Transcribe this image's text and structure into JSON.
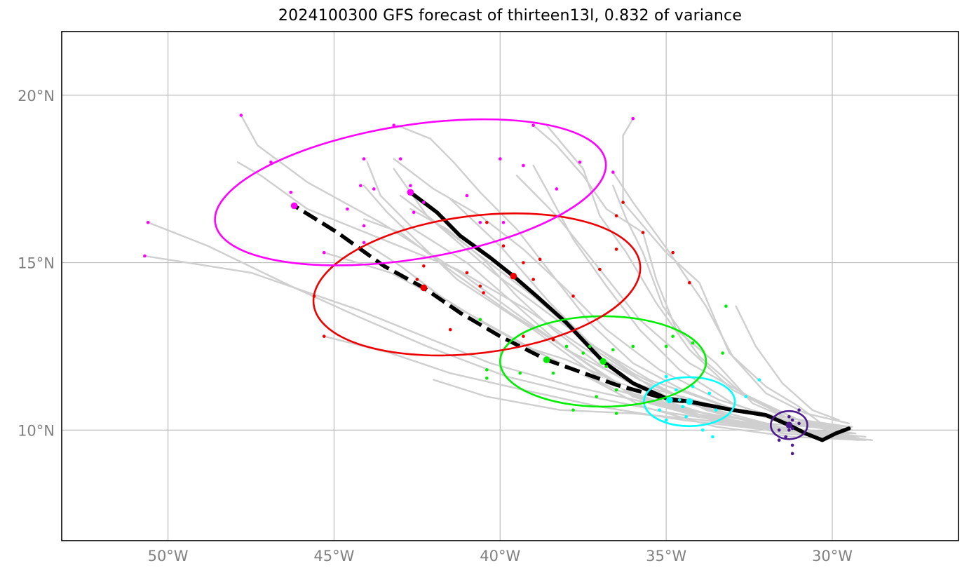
{
  "title": "2024100300 GFS forecast of thirteen13l, 0.832 of variance",
  "map": {
    "lon_range": [
      -53.2,
      -26.2
    ],
    "lat_range": [
      6.7,
      21.9
    ],
    "gridlines": true,
    "lon_ticks": [
      {
        "value": -50,
        "label": "50°W"
      },
      {
        "value": -45,
        "label": "45°W"
      },
      {
        "value": -40,
        "label": "40°W"
      },
      {
        "value": -35,
        "label": "35°W"
      },
      {
        "value": -30,
        "label": "30°W"
      }
    ],
    "lat_ticks": [
      {
        "value": 10,
        "label": "10°N"
      },
      {
        "value": 15,
        "label": "15°N"
      },
      {
        "value": 20,
        "label": "20°N"
      }
    ]
  },
  "colors": {
    "ensemble": "#cfcfcf",
    "mean_track": "#000000",
    "t0": "#4b1a8c",
    "t1": "#00ffff",
    "t2": "#00ee00",
    "t3": "#ee0000",
    "t4": "#ff00ff"
  },
  "mean_track": [
    [
      -29.5,
      10.05
    ],
    [
      -29.9,
      9.9
    ],
    [
      -30.3,
      9.7
    ],
    [
      -30.8,
      9.9
    ],
    [
      -31.3,
      10.15
    ],
    [
      -32.0,
      10.45
    ],
    [
      -33.0,
      10.6
    ],
    [
      -34.3,
      10.85
    ],
    [
      -35.0,
      10.95
    ],
    [
      -36.0,
      11.4
    ],
    [
      -36.9,
      12.05
    ],
    [
      -38.0,
      13.2
    ],
    [
      -38.9,
      14.0
    ],
    [
      -39.6,
      14.6
    ],
    [
      -40.3,
      15.15
    ],
    [
      -41.2,
      15.8
    ],
    [
      -41.9,
      16.5
    ],
    [
      -42.7,
      17.1
    ]
  ],
  "alt_track": [
    [
      -31.3,
      10.15
    ],
    [
      -32.0,
      10.45
    ],
    [
      -33.0,
      10.6
    ],
    [
      -34.3,
      10.85
    ],
    [
      -34.9,
      10.9
    ],
    [
      -35.6,
      11.1
    ],
    [
      -36.5,
      11.35
    ],
    [
      -38.6,
      12.1
    ],
    [
      -40.0,
      12.8
    ],
    [
      -41.2,
      13.5
    ],
    [
      -42.3,
      14.25
    ],
    [
      -43.5,
      14.9
    ],
    [
      -44.9,
      15.9
    ],
    [
      -46.2,
      16.7
    ]
  ],
  "mean_markers": [
    {
      "lon": -31.3,
      "lat": 10.15,
      "color_key": "t0"
    },
    {
      "lon": -34.3,
      "lat": 10.85,
      "color_key": "t1"
    },
    {
      "lon": -36.9,
      "lat": 12.05,
      "color_key": "t2"
    },
    {
      "lon": -39.6,
      "lat": 14.6,
      "color_key": "t3"
    },
    {
      "lon": -42.7,
      "lat": 17.1,
      "color_key": "t4"
    }
  ],
  "alt_markers": [
    {
      "lon": -34.9,
      "lat": 10.9,
      "color_key": "t1"
    },
    {
      "lon": -38.6,
      "lat": 12.1,
      "color_key": "t2"
    },
    {
      "lon": -42.3,
      "lat": 14.25,
      "color_key": "t3"
    },
    {
      "lon": -46.2,
      "lat": 16.7,
      "color_key": "t4"
    }
  ],
  "ellipses": [
    {
      "cx": -31.3,
      "cy": 10.15,
      "rx": 0.55,
      "ry": 0.42,
      "rot": 0,
      "color_key": "t0"
    },
    {
      "cx": -34.3,
      "cy": 10.85,
      "rx": 1.37,
      "ry": 0.73,
      "rot": 0,
      "color_key": "t1"
    },
    {
      "cx": -36.9,
      "cy": 12.05,
      "rx": 3.1,
      "ry": 1.35,
      "rot": 0,
      "color_key": "t2"
    },
    {
      "cx": -40.7,
      "cy": 14.35,
      "rx": 4.95,
      "ry": 2.05,
      "rot": -7,
      "color_key": "t3"
    },
    {
      "cx": -42.7,
      "cy": 17.1,
      "rx": 5.95,
      "ry": 2.0,
      "rot": -9,
      "color_key": "t4"
    }
  ],
  "ensemble_tracks": [
    [
      [
        -29.4,
        10.1
      ],
      [
        -31.3,
        10.2
      ],
      [
        -33.2,
        10.7
      ],
      [
        -35.5,
        11.5
      ],
      [
        -37.5,
        12.7
      ],
      [
        -39.0,
        14.0
      ],
      [
        -41.0,
        15.5
      ],
      [
        -43.0,
        17.0
      ]
    ],
    [
      [
        -29.3,
        9.9
      ],
      [
        -31.5,
        10.0
      ],
      [
        -33.8,
        10.6
      ],
      [
        -36.0,
        11.7
      ],
      [
        -38.3,
        13.3
      ],
      [
        -40.2,
        14.7
      ],
      [
        -42.2,
        16.4
      ],
      [
        -43.2,
        17.8
      ]
    ],
    [
      [
        -29.0,
        9.8
      ],
      [
        -31.2,
        10.0
      ],
      [
        -33.0,
        10.4
      ],
      [
        -35.0,
        11.0
      ],
      [
        -37.0,
        12.3
      ],
      [
        -38.5,
        13.8
      ],
      [
        -40.0,
        15.5
      ],
      [
        -41.5,
        16.9
      ]
    ],
    [
      [
        -29.6,
        10.0
      ],
      [
        -31.0,
        10.3
      ],
      [
        -32.5,
        11.0
      ],
      [
        -34.3,
        12.0
      ],
      [
        -35.8,
        13.3
      ],
      [
        -37.0,
        14.8
      ],
      [
        -38.3,
        16.4
      ],
      [
        -39.5,
        17.6
      ]
    ],
    [
      [
        -29.5,
        10.2
      ],
      [
        -30.8,
        10.5
      ],
      [
        -32.0,
        11.1
      ],
      [
        -33.0,
        12.2
      ],
      [
        -33.8,
        13.7
      ],
      [
        -34.9,
        15.3
      ],
      [
        -36.0,
        16.8
      ],
      [
        -36.6,
        17.7
      ]
    ],
    [
      [
        -29.8,
        10.3
      ],
      [
        -30.6,
        10.6
      ],
      [
        -31.5,
        11.4
      ],
      [
        -32.3,
        12.5
      ],
      [
        -32.9,
        13.7
      ]
    ],
    [
      [
        -30.2,
        10.1
      ],
      [
        -31.0,
        10.7
      ],
      [
        -32.0,
        11.3
      ],
      [
        -33.1,
        12.3
      ],
      [
        -34.0,
        14.4
      ],
      [
        -35.0,
        15.3
      ],
      [
        -36.3,
        16.8
      ],
      [
        -36.3,
        18.8
      ],
      [
        -36.0,
        19.3
      ]
    ],
    [
      [
        -29.6,
        9.9
      ],
      [
        -31.0,
        10.2
      ],
      [
        -32.4,
        10.8
      ],
      [
        -33.5,
        12.0
      ],
      [
        -34.7,
        13.0
      ],
      [
        -35.3,
        14.5
      ],
      [
        -35.7,
        15.9
      ],
      [
        -36.8,
        16.6
      ],
      [
        -37.5,
        17.6
      ],
      [
        -38.3,
        18.5
      ],
      [
        -39.0,
        19.1
      ]
    ],
    [
      [
        -29.2,
        9.7
      ],
      [
        -31.4,
        9.9
      ],
      [
        -33.6,
        10.3
      ],
      [
        -35.5,
        10.8
      ],
      [
        -37.2,
        11.7
      ],
      [
        -39.0,
        13.0
      ],
      [
        -41.3,
        14.5
      ],
      [
        -43.4,
        16.5
      ],
      [
        -44.1,
        17.3
      ]
    ],
    [
      [
        -29.3,
        9.8
      ],
      [
        -31.8,
        10.1
      ],
      [
        -34.2,
        10.5
      ],
      [
        -36.5,
        11.2
      ],
      [
        -38.8,
        12.3
      ],
      [
        -41.0,
        13.5
      ],
      [
        -43.3,
        14.7
      ],
      [
        -45.3,
        15.3
      ]
    ],
    [
      [
        -29.5,
        9.9
      ],
      [
        -31.9,
        10.0
      ],
      [
        -34.5,
        10.3
      ],
      [
        -37.0,
        10.7
      ],
      [
        -39.3,
        11.2
      ],
      [
        -41.5,
        11.7
      ],
      [
        -43.3,
        12.3
      ],
      [
        -45.3,
        12.8
      ]
    ],
    [
      [
        -29.4,
        9.9
      ],
      [
        -32.0,
        10.1
      ],
      [
        -34.8,
        10.5
      ],
      [
        -37.3,
        11.0
      ],
      [
        -39.8,
        11.6
      ],
      [
        -42.2,
        12.5
      ],
      [
        -44.3,
        13.4
      ],
      [
        -46.3,
        14.3
      ],
      [
        -48.8,
        15.5
      ],
      [
        -50.6,
        16.2
      ]
    ],
    [
      [
        -29.4,
        10.0
      ],
      [
        -32.0,
        10.2
      ],
      [
        -35.0,
        10.7
      ],
      [
        -37.8,
        11.3
      ],
      [
        -40.3,
        12.0
      ],
      [
        -42.3,
        12.8
      ],
      [
        -44.3,
        13.6
      ],
      [
        -47.5,
        14.7
      ],
      [
        -50.7,
        15.2
      ]
    ],
    [
      [
        -29.4,
        9.8
      ],
      [
        -31.8,
        10.0
      ],
      [
        -34.0,
        10.4
      ],
      [
        -36.0,
        11.0
      ],
      [
        -37.7,
        12.2
      ],
      [
        -39.4,
        13.4
      ],
      [
        -41.2,
        14.7
      ],
      [
        -43.6,
        16.2
      ],
      [
        -45.8,
        17.4
      ],
      [
        -47.3,
        18.5
      ],
      [
        -47.8,
        19.4
      ]
    ],
    [
      [
        -29.2,
        9.8
      ],
      [
        -31.6,
        10.1
      ],
      [
        -33.9,
        10.7
      ],
      [
        -35.8,
        11.5
      ],
      [
        -37.4,
        12.4
      ],
      [
        -39.2,
        13.6
      ],
      [
        -41.3,
        14.8
      ],
      [
        -43.8,
        15.8
      ],
      [
        -45.8,
        16.6
      ],
      [
        -47.2,
        17.6
      ],
      [
        -47.9,
        18.0
      ]
    ],
    [
      [
        -29.3,
        9.8
      ],
      [
        -31.6,
        10.0
      ],
      [
        -33.8,
        10.4
      ],
      [
        -36.0,
        11.1
      ],
      [
        -38.0,
        12.4
      ],
      [
        -39.6,
        13.8
      ],
      [
        -41.0,
        15.0
      ],
      [
        -42.6,
        16.0
      ],
      [
        -43.6,
        17.0
      ],
      [
        -44.0,
        18.0
      ]
    ],
    [
      [
        -29.0,
        9.7
      ],
      [
        -31.2,
        9.8
      ],
      [
        -33.5,
        10.1
      ],
      [
        -35.7,
        10.7
      ],
      [
        -37.4,
        11.6
      ],
      [
        -39.4,
        12.6
      ],
      [
        -40.5,
        13.2
      ],
      [
        -41.8,
        14.0
      ],
      [
        -43.0,
        14.9
      ],
      [
        -44.1,
        15.6
      ]
    ],
    [
      [
        -29.6,
        10.0
      ],
      [
        -31.2,
        10.2
      ],
      [
        -32.9,
        10.6
      ],
      [
        -34.5,
        11.2
      ],
      [
        -36.0,
        12.0
      ],
      [
        -37.3,
        13.2
      ],
      [
        -38.4,
        14.6
      ],
      [
        -39.5,
        16.0
      ],
      [
        -40.6,
        17.1
      ],
      [
        -41.4,
        18.0
      ],
      [
        -42.1,
        18.7
      ],
      [
        -43.1,
        19.1
      ]
    ],
    [
      [
        -29.3,
        9.9
      ],
      [
        -31.3,
        10.2
      ],
      [
        -33.0,
        10.8
      ],
      [
        -34.6,
        11.8
      ],
      [
        -35.8,
        13.0
      ],
      [
        -36.8,
        14.3
      ],
      [
        -37.8,
        15.7
      ],
      [
        -38.5,
        17.0
      ],
      [
        -39.0,
        17.9
      ]
    ],
    [
      [
        -29.4,
        10.0
      ],
      [
        -31.0,
        10.3
      ],
      [
        -32.6,
        11.0
      ],
      [
        -34.0,
        12.2
      ],
      [
        -35.1,
        13.7
      ],
      [
        -35.7,
        15.3
      ],
      [
        -36.2,
        16.3
      ],
      [
        -36.6,
        17.3
      ]
    ],
    [
      [
        -28.8,
        9.7
      ],
      [
        -30.8,
        9.9
      ],
      [
        -33.0,
        10.3
      ],
      [
        -35.0,
        10.8
      ],
      [
        -36.8,
        11.8
      ],
      [
        -38.4,
        13.0
      ],
      [
        -39.5,
        14.0
      ],
      [
        -40.5,
        15.1
      ],
      [
        -41.6,
        16.0
      ],
      [
        -42.7,
        16.6
      ]
    ],
    [
      [
        -29.5,
        9.9
      ],
      [
        -31.7,
        10.0
      ],
      [
        -33.9,
        10.3
      ],
      [
        -36.0,
        10.5
      ],
      [
        -38.2,
        10.6
      ],
      [
        -40.4,
        11.0
      ],
      [
        -42.0,
        11.5
      ]
    ],
    [
      [
        -29.7,
        9.8
      ],
      [
        -31.5,
        9.9
      ],
      [
        -33.2,
        10.3
      ],
      [
        -34.8,
        10.8
      ],
      [
        -36.4,
        11.4
      ],
      [
        -38.0,
        12.1
      ],
      [
        -39.6,
        12.6
      ],
      [
        -40.7,
        13.2
      ]
    ],
    [
      [
        -29.5,
        10.1
      ],
      [
        -31.6,
        10.4
      ],
      [
        -33.8,
        10.8
      ],
      [
        -36.0,
        11.4
      ],
      [
        -37.8,
        12.3
      ],
      [
        -39.7,
        13.5
      ],
      [
        -41.4,
        14.7
      ],
      [
        -43.0,
        15.9
      ],
      [
        -44.1,
        16.3
      ]
    ],
    [
      [
        -29.4,
        10.0
      ],
      [
        -31.4,
        10.3
      ],
      [
        -33.4,
        10.9
      ],
      [
        -35.2,
        11.8
      ],
      [
        -36.8,
        13.0
      ],
      [
        -38.0,
        14.2
      ],
      [
        -39.3,
        15.4
      ],
      [
        -40.6,
        16.4
      ],
      [
        -42.0,
        17.2
      ],
      [
        -43.2,
        18.1
      ]
    ],
    [
      [
        -29.6,
        10.0
      ],
      [
        -31.4,
        10.4
      ],
      [
        -33.0,
        11.2
      ],
      [
        -34.3,
        12.4
      ],
      [
        -35.3,
        13.8
      ],
      [
        -36.2,
        15.3
      ],
      [
        -37.0,
        16.4
      ],
      [
        -37.5,
        17.8
      ],
      [
        -38.6,
        19.1
      ]
    ]
  ],
  "scatter_points": {
    "t0": [
      [
        -31.0,
        10.6
      ],
      [
        -31.3,
        10.4
      ],
      [
        -31.2,
        10.3
      ],
      [
        -31.0,
        10.2
      ],
      [
        -31.3,
        10.0
      ],
      [
        -31.4,
        9.8
      ],
      [
        -31.6,
        9.7
      ],
      [
        -31.2,
        9.55
      ],
      [
        -31.2,
        9.3
      ],
      [
        -31.6,
        10.0
      ],
      [
        -31.2,
        10.05
      ]
    ],
    "t1": [
      [
        -35.0,
        11.6
      ],
      [
        -34.7,
        11.2
      ],
      [
        -33.7,
        11.1
      ],
      [
        -32.6,
        11.0
      ],
      [
        -34.5,
        10.7
      ],
      [
        -35.0,
        10.3
      ],
      [
        -33.9,
        10.0
      ],
      [
        -33.6,
        9.8
      ],
      [
        -34.4,
        10.4
      ],
      [
        -32.2,
        11.5
      ],
      [
        -35.2,
        10.6
      ],
      [
        -34.6,
        10.9
      ],
      [
        -34.2,
        11.3
      ],
      [
        -33.5,
        10.6
      ]
    ],
    "t2": [
      [
        -33.2,
        13.7
      ],
      [
        -34.8,
        12.8
      ],
      [
        -36.6,
        12.4
      ],
      [
        -37.3,
        12.5
      ],
      [
        -38.0,
        12.5
      ],
      [
        -40.6,
        13.3
      ],
      [
        -36.8,
        11.9
      ],
      [
        -36.5,
        11.2
      ],
      [
        -37.1,
        11.0
      ],
      [
        -38.4,
        11.7
      ],
      [
        -39.4,
        11.7
      ],
      [
        -40.4,
        11.8
      ],
      [
        -40.4,
        11.55
      ],
      [
        -36.5,
        10.5
      ],
      [
        -37.8,
        10.6
      ],
      [
        -34.2,
        12.6
      ],
      [
        -33.3,
        12.3
      ],
      [
        -35.0,
        12.5
      ],
      [
        -36.0,
        12.5
      ],
      [
        -37.5,
        12.3
      ]
    ],
    "t3": [
      [
        -36.3,
        16.8
      ],
      [
        -35.7,
        15.9
      ],
      [
        -34.8,
        15.3
      ],
      [
        -34.3,
        14.4
      ],
      [
        -36.5,
        15.4
      ],
      [
        -37.0,
        14.8
      ],
      [
        -38.8,
        15.1
      ],
      [
        -39.3,
        15.0
      ],
      [
        -39.9,
        15.5
      ],
      [
        -40.4,
        16.2
      ],
      [
        -40.6,
        14.3
      ],
      [
        -40.5,
        14.1
      ],
      [
        -41.0,
        14.7
      ],
      [
        -42.3,
        14.9
      ],
      [
        -45.6,
        14.0
      ],
      [
        -45.3,
        12.8
      ],
      [
        -41.5,
        13.0
      ],
      [
        -39.3,
        12.8
      ],
      [
        -38.4,
        12.7
      ],
      [
        -37.8,
        14.0
      ],
      [
        -39.0,
        14.5
      ],
      [
        -36.5,
        16.4
      ],
      [
        -42.5,
        14.5
      ]
    ],
    "t4": [
      [
        -36.0,
        19.3
      ],
      [
        -39.0,
        19.1
      ],
      [
        -43.2,
        19.1
      ],
      [
        -47.8,
        19.4
      ],
      [
        -46.9,
        18.0
      ],
      [
        -44.1,
        18.1
      ],
      [
        -43.0,
        18.1
      ],
      [
        -40.0,
        18.1
      ],
      [
        -39.3,
        17.9
      ],
      [
        -37.6,
        18.0
      ],
      [
        -36.6,
        17.7
      ],
      [
        -38.3,
        17.2
      ],
      [
        -42.7,
        17.3
      ],
      [
        -42.3,
        16.8
      ],
      [
        -40.6,
        16.2
      ],
      [
        -42.6,
        16.5
      ],
      [
        -44.6,
        16.6
      ],
      [
        -46.3,
        17.1
      ],
      [
        -50.6,
        16.2
      ],
      [
        -50.7,
        15.2
      ],
      [
        -45.3,
        15.3
      ],
      [
        -44.1,
        15.6
      ],
      [
        -44.1,
        16.1
      ],
      [
        -43.8,
        17.2
      ],
      [
        -44.2,
        17.3
      ],
      [
        -41.0,
        17.0
      ],
      [
        -39.9,
        16.2
      ]
    ]
  }
}
